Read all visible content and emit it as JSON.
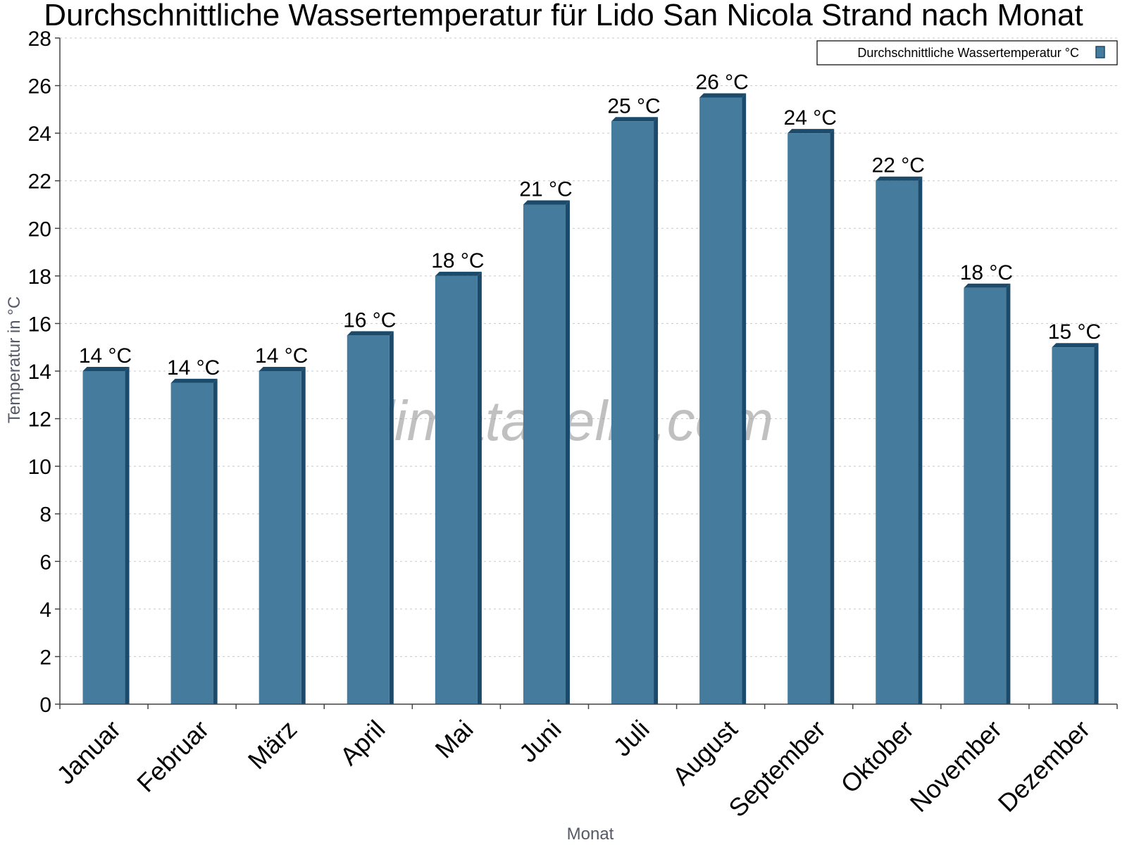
{
  "chart_data": {
    "type": "bar",
    "title": "Durchschnittliche Wassertemperatur für Lido San Nicola Strand nach Monat",
    "xlabel": "Monat",
    "ylabel": "Temperatur in °C",
    "ylim": [
      0,
      28
    ],
    "yticks": [
      "0",
      "2",
      "4",
      "6",
      "8",
      "10",
      "12",
      "14",
      "16",
      "18",
      "20",
      "22",
      "24",
      "26",
      "28"
    ],
    "grid": true,
    "legend_position": "top-right",
    "categories": [
      "Januar",
      "Februar",
      "März",
      "April",
      "Mai",
      "Juni",
      "Juli",
      "August",
      "September",
      "Oktober",
      "November",
      "Dezember"
    ],
    "series": [
      {
        "name": "Durchschnittliche Wassertemperatur °C",
        "color": "#457b9d",
        "values": [
          14,
          13.5,
          14,
          15.5,
          18,
          21,
          24.5,
          25.5,
          24,
          22,
          17.5,
          15
        ],
        "labels": [
          "14 °C",
          "14 °C",
          "14 °C",
          "16 °C",
          "18 °C",
          "21 °C",
          "25 °C",
          "26 °C",
          "24 °C",
          "22 °C",
          "18 °C",
          "15 °C"
        ]
      }
    ],
    "watermark": "klimatabelle.com"
  }
}
